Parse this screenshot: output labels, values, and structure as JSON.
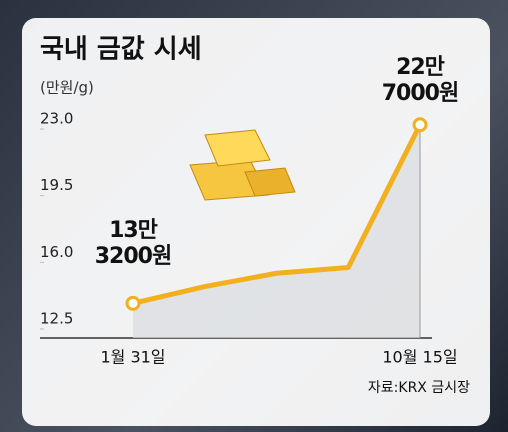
{
  "chart_data": {
    "type": "line",
    "title": "국내 금값 시세",
    "y_label": "(만원/g)",
    "categories": [
      "1월 31일",
      null,
      null,
      null,
      "10월 15일"
    ],
    "series": [
      {
        "name": "금값",
        "color": "#f2b01e",
        "values": [
          13.32,
          14.2,
          14.9,
          15.2,
          22.7
        ],
        "value_labels": [
          "13만\n3200원",
          null,
          null,
          null,
          "22만\n7000원"
        ]
      }
    ],
    "ylim": [
      11.5,
      24
    ],
    "yticks": [
      12.5,
      {
        "value": 16,
        "label": "16.0"
      },
      19.5,
      {
        "value": 23,
        "label": "23.0"
      }
    ],
    "source": "자료:KRX 금시장"
  }
}
